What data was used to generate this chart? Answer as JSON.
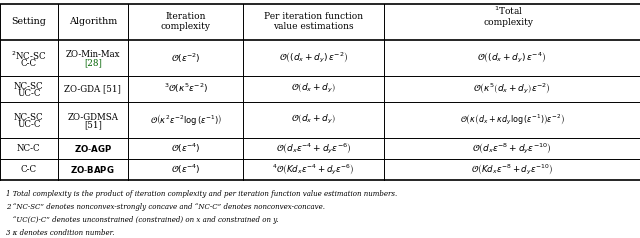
{
  "figsize": [
    6.4,
    2.38
  ],
  "dpi": 100,
  "background": "#ffffff",
  "footnotes": [
    "1 Total complexity is the product of iteration complexity and per iteration function value estimation numbers.",
    "2 “NC-SC” denotes nonconvex-strongly concave and “NC-C” denotes nonconvex-concave.",
    "   “UC(C)-C” denotes unconstrained (constrained) on x and constrained on y.",
    "3 κ denotes condition number."
  ]
}
